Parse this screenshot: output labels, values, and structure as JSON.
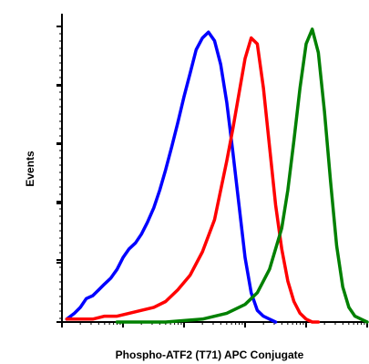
{
  "chart_data": {
    "type": "line",
    "xlabel": "Phospho-ATF2 (T71) APC Conjugate",
    "ylabel": "Events",
    "xscale": "log",
    "xlim": [
      1,
      100000
    ],
    "ylim": [
      0,
      100
    ],
    "grid": false,
    "legend": "none",
    "series": [
      {
        "color": "#0000ff",
        "x": [
          1.2,
          1.6,
          2,
          2.5,
          3.2,
          4,
          5,
          6.3,
          8,
          10,
          12.6,
          16,
          20,
          25,
          32,
          40,
          50,
          63,
          79,
          100,
          126,
          158,
          200,
          251,
          316,
          398,
          501,
          631,
          794,
          1000,
          1259,
          1585,
          1995,
          2512,
          3162
        ],
        "y": [
          1,
          3,
          5,
          8,
          9,
          11,
          13,
          15,
          18,
          22,
          25,
          27,
          30,
          34,
          39,
          45,
          52,
          60,
          68,
          77,
          85,
          93,
          97,
          99,
          96,
          88,
          75,
          58,
          40,
          22,
          10,
          4,
          2,
          1,
          0
        ]
      },
      {
        "color": "#ff0000",
        "x": [
          1.2,
          2,
          3.2,
          5,
          8,
          12.6,
          20,
          32,
          50,
          79,
          126,
          200,
          316,
          398,
          501,
          631,
          794,
          1000,
          1259,
          1585,
          1995,
          2512,
          3162,
          3981,
          5012,
          6310,
          7943,
          10000,
          12589,
          15849
        ],
        "y": [
          1,
          1,
          1,
          2,
          2,
          3,
          4,
          5,
          7,
          11,
          16,
          24,
          35,
          45,
          55,
          66,
          78,
          90,
          97,
          95,
          80,
          60,
          40,
          25,
          14,
          7,
          3,
          1,
          0,
          0
        ]
      },
      {
        "color": "#008000",
        "x": [
          8,
          50,
          200,
          500,
          1000,
          1585,
          2512,
          3981,
          5012,
          6310,
          7943,
          10000,
          12589,
          15849,
          19953,
          25119,
          31623,
          39811,
          50119,
          63096,
          79433,
          100000
        ],
        "y": [
          0,
          0,
          1,
          3,
          6,
          10,
          18,
          32,
          45,
          62,
          80,
          95,
          100,
          92,
          72,
          48,
          26,
          12,
          5,
          2,
          1,
          0
        ]
      }
    ]
  }
}
